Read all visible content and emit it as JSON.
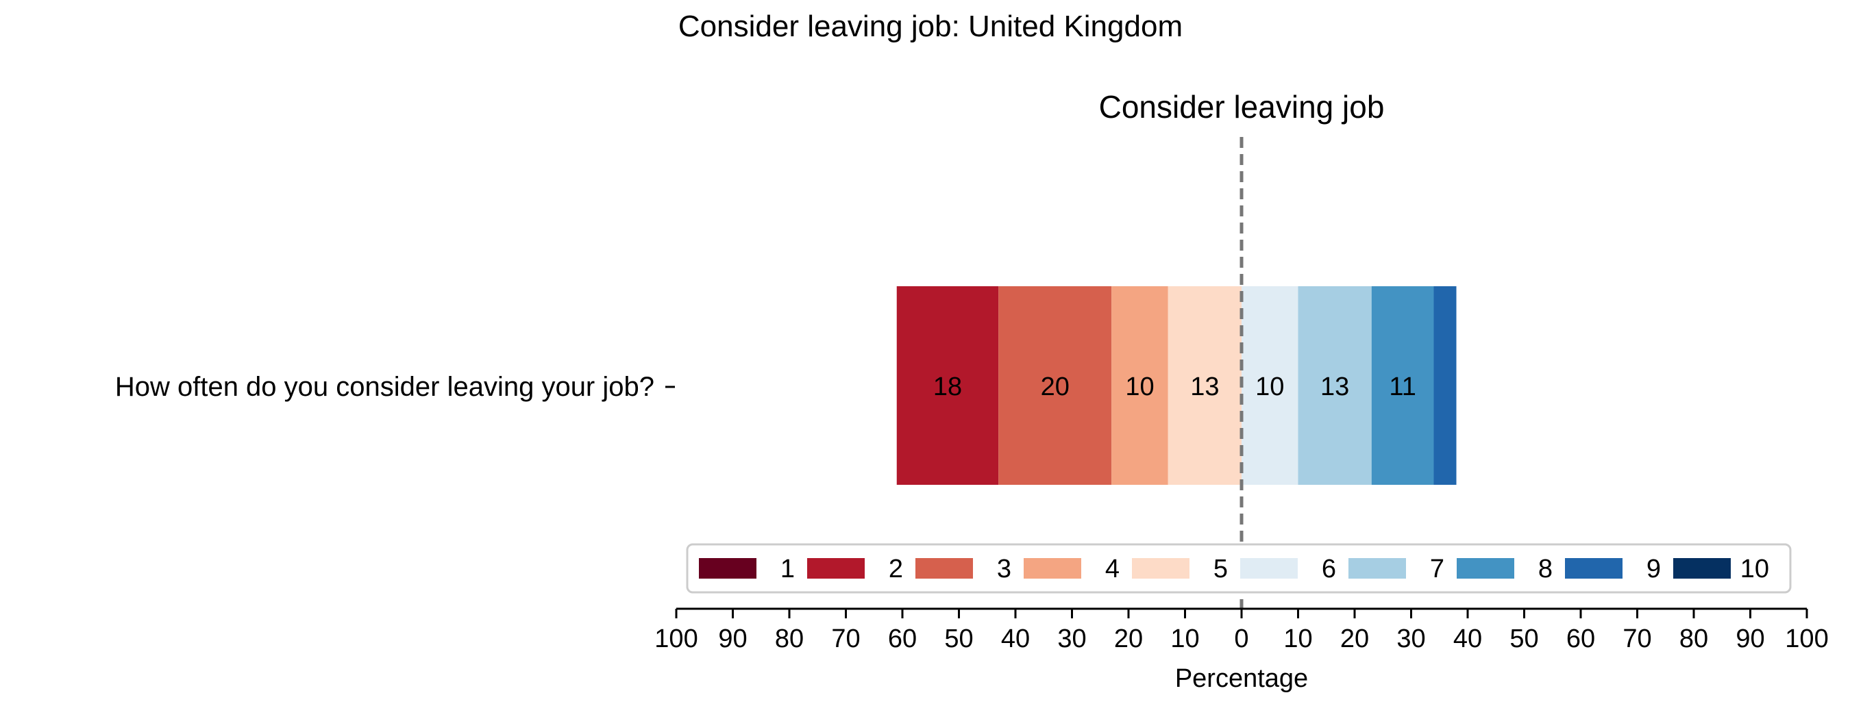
{
  "chart_data": {
    "type": "bar",
    "orientation": "horizontal-diverging",
    "title": "Consider leaving job: United Kingdom",
    "subtitle": "Consider leaving job",
    "xlabel": "Percentage",
    "xlim": [
      -100,
      100
    ],
    "x_ticks": [
      -100,
      -90,
      -80,
      -70,
      -60,
      -50,
      -40,
      -30,
      -20,
      -10,
      0,
      10,
      20,
      30,
      40,
      50,
      60,
      70,
      80,
      90,
      100
    ],
    "x_tick_labels": [
      "100",
      "90",
      "80",
      "70",
      "60",
      "50",
      "40",
      "30",
      "20",
      "10",
      "0",
      "10",
      "20",
      "30",
      "40",
      "50",
      "60",
      "70",
      "80",
      "90",
      "100"
    ],
    "categories": [
      "How often do you consider leaving your job?"
    ],
    "center_line": 0,
    "legend_position": "bottom-center",
    "series": [
      {
        "name": "1",
        "color": "#67001f",
        "value": 0,
        "label": ""
      },
      {
        "name": "2",
        "color": "#b2182b",
        "value": 18,
        "label": "18"
      },
      {
        "name": "3",
        "color": "#d6604d",
        "value": 20,
        "label": "20"
      },
      {
        "name": "4",
        "color": "#f4a582",
        "value": 10,
        "label": "10"
      },
      {
        "name": "5",
        "color": "#fddbc7",
        "value": 13,
        "label": "13"
      },
      {
        "name": "6",
        "color": "#e0ecf4",
        "value": 10,
        "label": "10"
      },
      {
        "name": "7",
        "color": "#a6cee3",
        "value": 13,
        "label": "13"
      },
      {
        "name": "8",
        "color": "#4393c3",
        "value": 11,
        "label": "11"
      },
      {
        "name": "9",
        "color": "#2166ac",
        "value": 4,
        "label": ""
      },
      {
        "name": "10",
        "color": "#053061",
        "value": 0,
        "label": ""
      }
    ],
    "negative_series": [
      "1",
      "2",
      "3",
      "4",
      "5"
    ],
    "positive_series": [
      "6",
      "7",
      "8",
      "9",
      "10"
    ]
  }
}
